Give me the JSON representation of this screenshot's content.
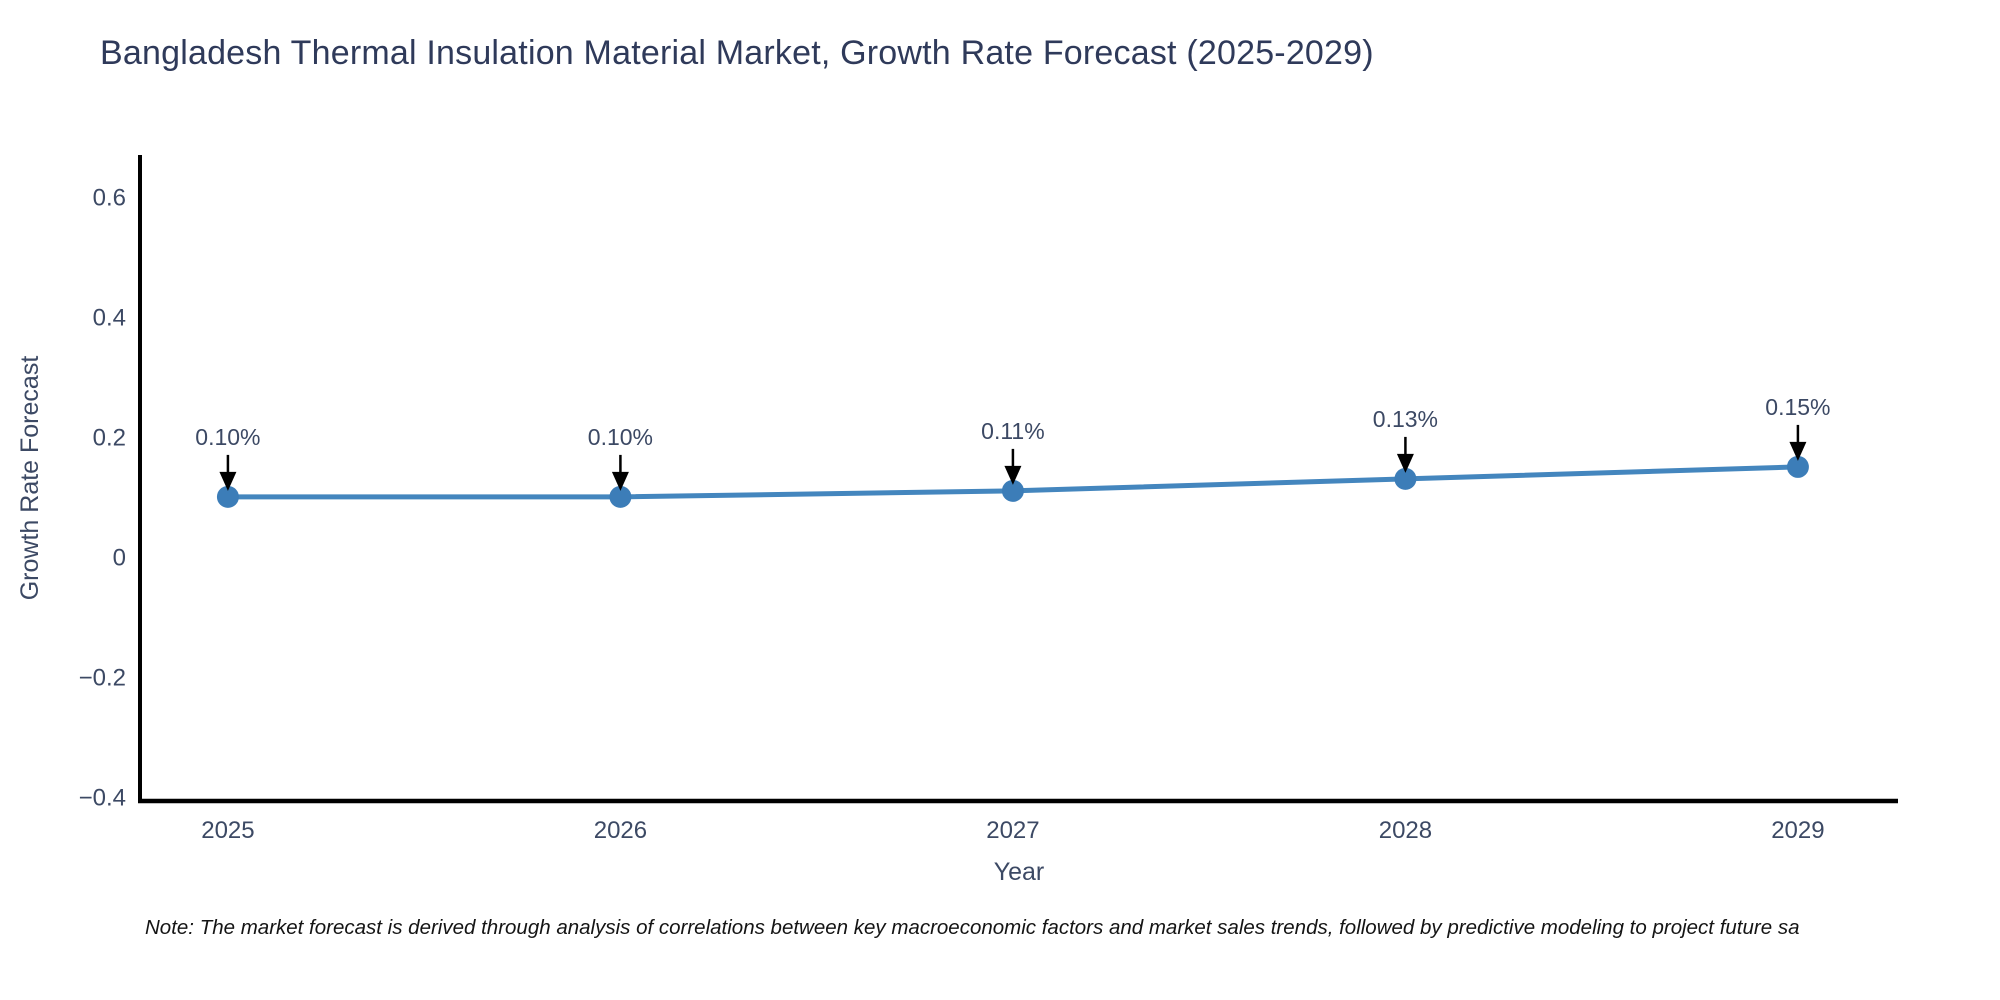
{
  "title": "Bangladesh Thermal Insulation Material Market, Growth Rate Forecast (2025-2029)",
  "note": "Note: The market forecast is derived through analysis of correlations between key macroeconomic factors and market sales trends, followed by predictive modeling to project future sa",
  "chart_data": {
    "type": "line",
    "title": "Bangladesh Thermal Insulation Material Market, Growth Rate Forecast (2025-2029)",
    "xlabel": "Year",
    "ylabel": "Growth Rate Forecast",
    "x": [
      2025,
      2026,
      2027,
      2028,
      2029
    ],
    "values": [
      0.1,
      0.1,
      0.11,
      0.13,
      0.15
    ],
    "point_labels": [
      "0.10%",
      "0.10%",
      "0.11%",
      "0.13%",
      "0.15%"
    ],
    "xtick_labels": [
      "2025",
      "2026",
      "2027",
      "2028",
      "2029"
    ],
    "yticks": [
      0.6,
      0.4,
      0.2,
      0,
      -0.2,
      -0.4
    ],
    "ytick_labels": [
      "0.6",
      "0.4",
      "0.2",
      "0",
      "−0.2",
      "−0.4"
    ],
    "xlim": [
      2024.776,
      2029.255
    ],
    "ylim": [
      -0.407,
      0.67
    ],
    "grid": false,
    "legend": false,
    "annotation_style": "down-arrow-to-point",
    "colors": {
      "line": "#4486be",
      "marker": "#3c7db8",
      "arrow": "#000000",
      "axis": "#000000",
      "tick_text": "#3c4964",
      "title_text": "#2f3a5a",
      "note_text": "#141414",
      "background": "#ffffff"
    }
  }
}
